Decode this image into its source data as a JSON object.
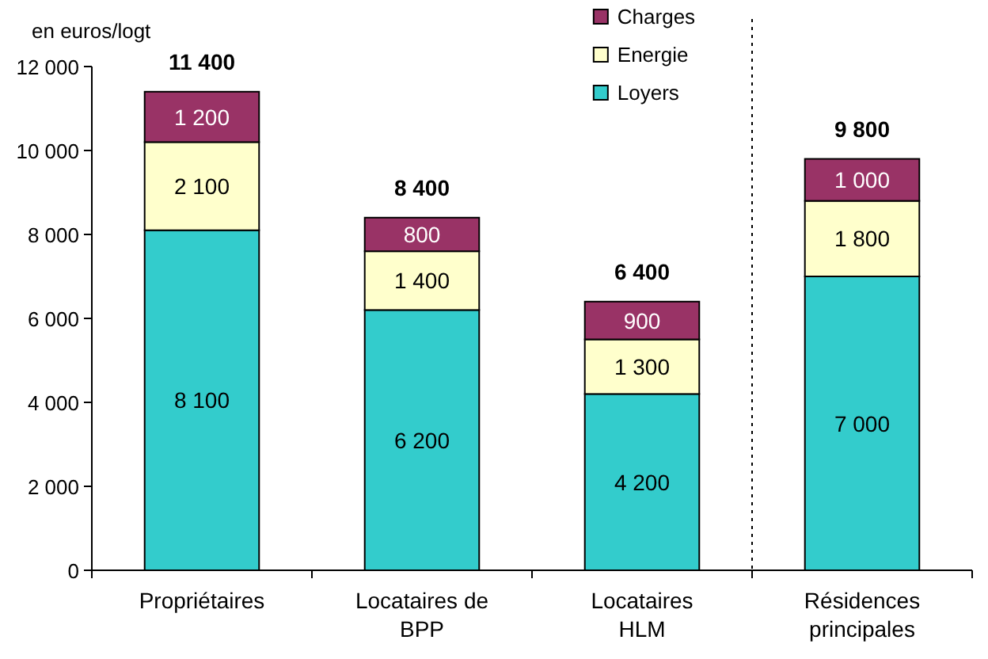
{
  "chart_data": {
    "type": "bar",
    "stacked": true,
    "ylabel": "en euros/logt",
    "categories": [
      "Propriétaires",
      "Locataires de BPP",
      "Locataires HLM",
      "Résidences principales"
    ],
    "series": [
      {
        "name": "Loyers",
        "color": "#33cccc",
        "values": [
          8100,
          6200,
          4200,
          7000
        ],
        "value_labels": [
          "8 100",
          "6 200",
          "4 200",
          "7 000"
        ]
      },
      {
        "name": "Energie",
        "color": "#ffffcc",
        "values": [
          2100,
          1400,
          1300,
          1800
        ],
        "value_labels": [
          "2 100",
          "1 400",
          "1 300",
          "1 800"
        ]
      },
      {
        "name": "Charges",
        "color": "#993366",
        "values": [
          1200,
          800,
          900,
          1000
        ],
        "value_labels": [
          "1 200",
          "800",
          "900",
          "1 000"
        ]
      }
    ],
    "totals": [
      "11 400",
      "8 400",
      "6 400",
      "9 800"
    ],
    "ylim": [
      0,
      12000
    ],
    "yticks": [
      0,
      {
        "value": 2000,
        "label": "2 000"
      },
      {
        "value": 4000,
        "label": "4 000"
      },
      {
        "value": 6000,
        "label": "6 000"
      },
      {
        "value": 8000,
        "label": "8 000"
      },
      {
        "value": 10000,
        "label": "10 000"
      },
      {
        "value": 12000,
        "label": "12 000"
      }
    ],
    "grid": false,
    "legend": "top"
  }
}
